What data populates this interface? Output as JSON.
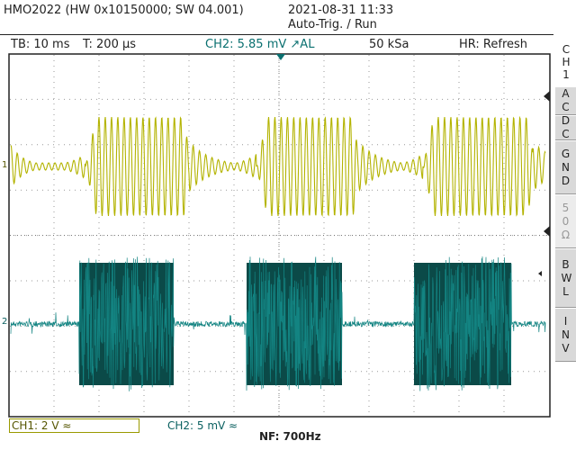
{
  "header": {
    "device": "HMO2022 (HW 0x10150000; SW 04.001)",
    "datetime": "2021-08-31 11:33",
    "status": "Auto-Trig. / Run"
  },
  "status_bar": {
    "timebase": "TB: 10 ms",
    "trigger_time": "T: 200 µs",
    "trigger": "CH2: 5.85 mV ↗AL",
    "sample_rate": "50 kSa",
    "mode": "HR: Refresh"
  },
  "markers": {
    "ch1": "1",
    "ch2": "2"
  },
  "side_menu": {
    "title": "CH1",
    "items": [
      "AC",
      "DC",
      "GND",
      "50 Ω",
      "BWL",
      "INV"
    ]
  },
  "footer": {
    "ch1": "CH1: 2 V ≈",
    "ch2": "CH2: 5 mV ≈",
    "filter": "NF: 700Hz"
  }
}
